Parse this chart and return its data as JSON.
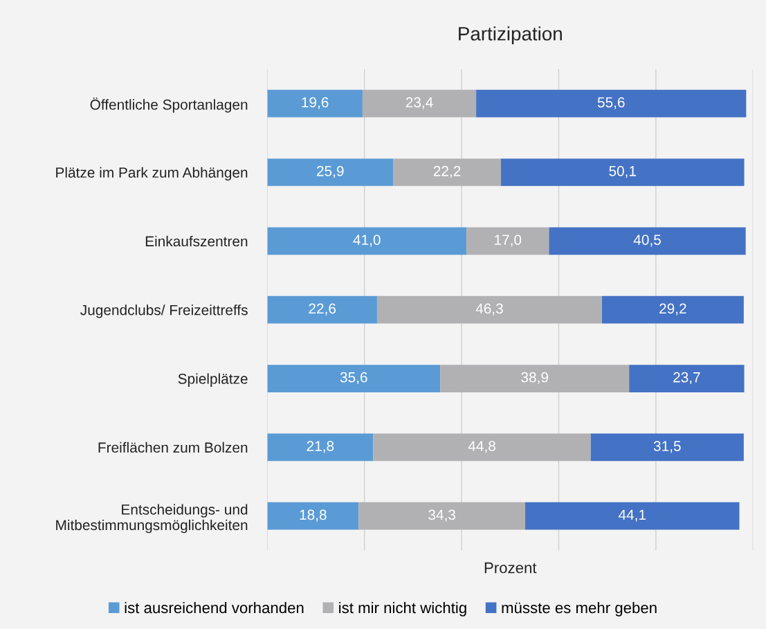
{
  "chart_data": {
    "type": "bar",
    "orientation": "horizontal",
    "stacked": true,
    "title": "Partizipation",
    "xlabel": "Prozent",
    "categories": [
      "Öffentliche Sportanlagen",
      "Plätze im Park zum Abhängen",
      "Einkaufszentren",
      "Jugendclubs/ Freizeittreffs",
      "Spielplätze",
      "Freiflächen zum Bolzen",
      "Entscheidungs- und\nMitbestimmungsmöglichkeiten"
    ],
    "series": [
      {
        "name": "ist ausreichend vorhanden",
        "color": "#5b9bd5",
        "values": [
          19.6,
          25.9,
          41.0,
          22.6,
          35.6,
          21.8,
          18.8
        ],
        "value_labels": [
          "19,6",
          "25,9",
          "41,0",
          "22,6",
          "35,6",
          "21,8",
          "18,8"
        ]
      },
      {
        "name": "ist mir nicht wichtig",
        "color": "#b1b1b4",
        "values": [
          23.4,
          22.2,
          17.0,
          46.3,
          38.9,
          44.8,
          34.3
        ],
        "value_labels": [
          "23,4",
          "22,2",
          "17,0",
          "46,3",
          "38,9",
          "44,8",
          "34,3"
        ]
      },
      {
        "name": "müsste es mehr geben",
        "color": "#4472c4",
        "values": [
          55.6,
          50.1,
          40.5,
          29.2,
          23.7,
          31.5,
          44.1
        ],
        "value_labels": [
          "55,6",
          "50,1",
          "40,5",
          "29,2",
          "23,7",
          "31,5",
          "44,1"
        ]
      }
    ],
    "xlim": [
      0,
      100
    ],
    "grid": "x",
    "legend": "bottom",
    "tick_labels": "y"
  }
}
